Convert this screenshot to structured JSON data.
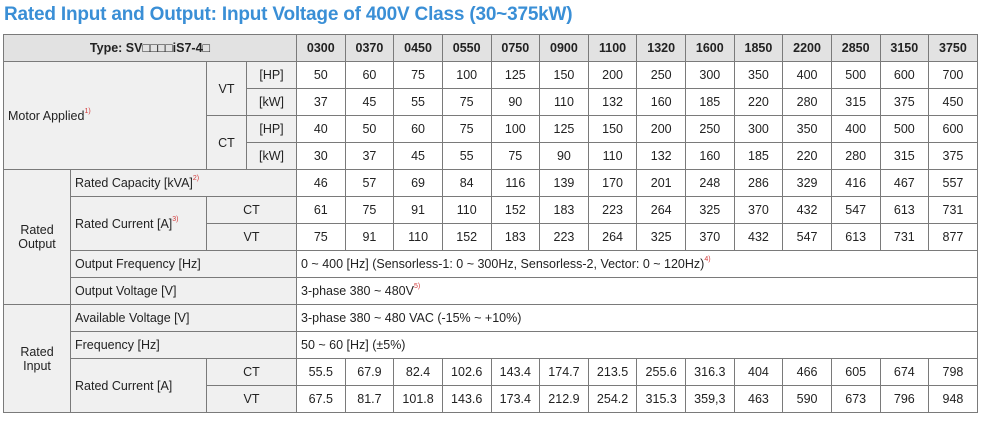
{
  "title": "Rated Input and Output: Input Voltage of 400V Class (30~375kW)",
  "type_label": "Type: SV□□□□iS7-4□",
  "models": [
    "0300",
    "0370",
    "0450",
    "0550",
    "0750",
    "0900",
    "1100",
    "1320",
    "1600",
    "1850",
    "2200",
    "2850",
    "3150",
    "3750"
  ],
  "motor": {
    "label": "Motor Applied",
    "note": "1)",
    "vt_label": "VT",
    "ct_label": "CT",
    "hp_unit": "[HP]",
    "kw_unit": "[kW]",
    "vt_hp": [
      "50",
      "60",
      "75",
      "100",
      "125",
      "150",
      "200",
      "250",
      "300",
      "350",
      "400",
      "500",
      "600",
      "700"
    ],
    "vt_kw": [
      "37",
      "45",
      "55",
      "75",
      "90",
      "110",
      "132",
      "160",
      "185",
      "220",
      "280",
      "315",
      "375",
      "450"
    ],
    "ct_hp": [
      "40",
      "50",
      "60",
      "75",
      "100",
      "125",
      "150",
      "200",
      "250",
      "300",
      "350",
      "400",
      "500",
      "600"
    ],
    "ct_kw": [
      "30",
      "37",
      "45",
      "55",
      "75",
      "90",
      "110",
      "132",
      "160",
      "185",
      "220",
      "280",
      "315",
      "375"
    ]
  },
  "output": {
    "label_line1": "Rated",
    "label_line2": "Output",
    "capacity_label": "Rated Capacity [kVA]",
    "capacity_note": "2)",
    "capacity": [
      "46",
      "57",
      "69",
      "84",
      "116",
      "139",
      "170",
      "201",
      "248",
      "286",
      "329",
      "416",
      "467",
      "557"
    ],
    "current_label": "Rated Current [A]",
    "current_note": "3)",
    "ct_label": "CT",
    "vt_label": "VT",
    "current_ct": [
      "61",
      "75",
      "91",
      "110",
      "152",
      "183",
      "223",
      "264",
      "325",
      "370",
      "432",
      "547",
      "613",
      "731"
    ],
    "current_vt": [
      "75",
      "91",
      "110",
      "152",
      "183",
      "223",
      "264",
      "325",
      "370",
      "432",
      "547",
      "613",
      "731",
      "877"
    ],
    "freq_label": "Output Frequency [Hz]",
    "freq_value": "0 ~ 400 [Hz] (Sensorless-1: 0 ~ 300Hz, Sensorless-2, Vector: 0 ~ 120Hz)",
    "freq_note": "4)",
    "voltage_label": "Output Voltage [V]",
    "voltage_value": "3-phase 380 ~ 480V",
    "voltage_note": "5)"
  },
  "input": {
    "label_line1": "Rated",
    "label_line2": "Input",
    "avail_label": "Available Voltage [V]",
    "avail_value": "3-phase 380 ~ 480 VAC (-15% ~ +10%)",
    "freq_label": "Frequency [Hz]",
    "freq_value": "50 ~ 60 [Hz] (±5%)",
    "current_label": "Rated Current [A]",
    "ct_label": "CT",
    "vt_label": "VT",
    "current_ct": [
      "55.5",
      "67.9",
      "82.4",
      "102.6",
      "143.4",
      "174.7",
      "213.5",
      "255.6",
      "316.3",
      "404",
      "466",
      "605",
      "674",
      "798"
    ],
    "current_vt": [
      "67.5",
      "81.7",
      "101.8",
      "143.6",
      "173.4",
      "212.9",
      "254.2",
      "315.3",
      "359,3",
      "463",
      "590",
      "673",
      "796",
      "948"
    ]
  }
}
